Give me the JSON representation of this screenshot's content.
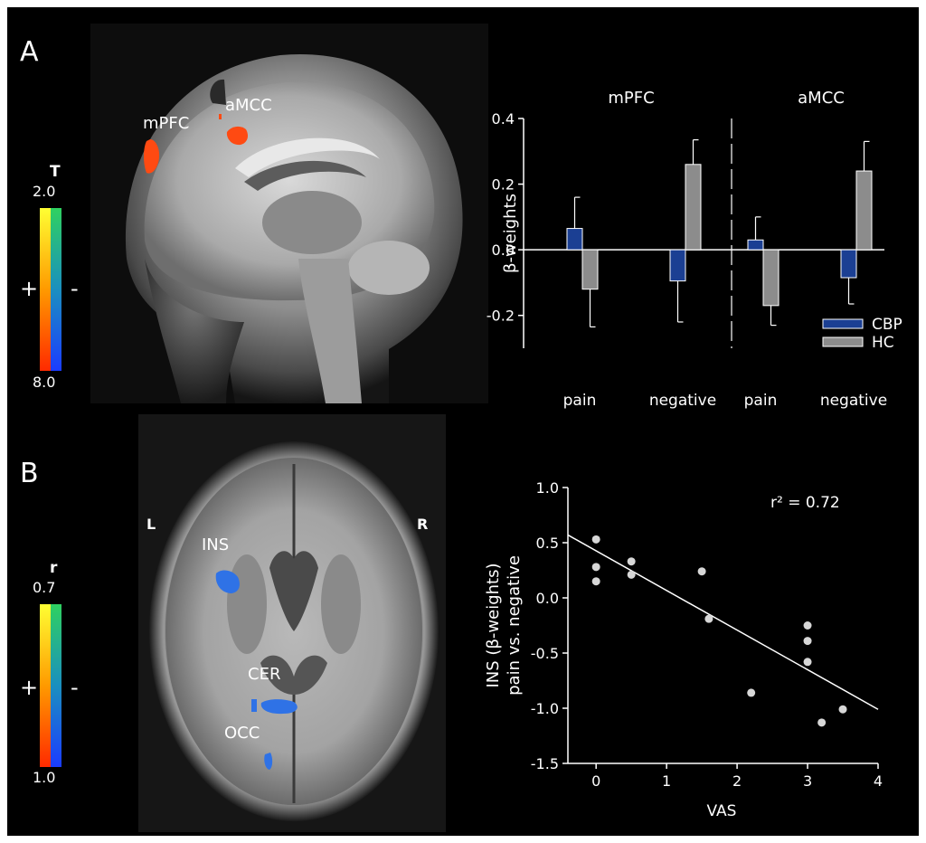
{
  "panels": {
    "A": {
      "letter": "A",
      "brain_view": "sagittal",
      "roi_labels": [
        "mPFC",
        "aMCC"
      ],
      "colorbar": {
        "title": "T",
        "top_label": "2.0",
        "bottom_label": "8.0",
        "plus": "+",
        "minus": "-"
      }
    },
    "B": {
      "letter": "B",
      "brain_view": "axial",
      "side_left": "L",
      "side_right": "R",
      "roi_labels": [
        "INS",
        "CER",
        "OCC"
      ],
      "colorbar": {
        "title": "r",
        "top_label": "0.7",
        "bottom_label": "1.0",
        "plus": "+",
        "minus": "-"
      }
    }
  },
  "colors": {
    "CBP": "#1b3f93",
    "HC": "#8c8c8c",
    "activation_positive": "#ff4a12",
    "activation_negative": "#2f72e6",
    "background": "#000000",
    "foreground": "#ffffff",
    "scatter_point": "#d7d7d7"
  },
  "chart_data": [
    {
      "type": "bar",
      "group_titles": [
        "mPFC",
        "aMCC"
      ],
      "categories": [
        "pain",
        "negative",
        "pain",
        "negative"
      ],
      "groups": [
        0,
        0,
        1,
        1
      ],
      "series": [
        {
          "name": "CBP",
          "values": [
            0.065,
            -0.095,
            0.03,
            -0.085
          ],
          "error": [
            0.095,
            0.125,
            0.07,
            0.08
          ]
        },
        {
          "name": "HC",
          "values": [
            -0.12,
            0.26,
            -0.17,
            0.24
          ],
          "error": [
            0.115,
            0.075,
            0.06,
            0.09
          ]
        }
      ],
      "ylabel": "β-weights",
      "xlabel": "",
      "ylim": [
        -0.3,
        0.4
      ],
      "yticks": [
        "0.4",
        "0.2",
        "0.0",
        "-0.2"
      ],
      "ytick_values": [
        0.4,
        0.2,
        0.0,
        -0.2
      ],
      "legend_position": "lower-right",
      "separator": "dashed vertical line between mPFC and aMCC groups"
    },
    {
      "type": "scatter",
      "points": [
        {
          "x": 0,
          "y": 0.53
        },
        {
          "x": 0,
          "y": 0.28
        },
        {
          "x": 0,
          "y": 0.15
        },
        {
          "x": 0.5,
          "y": 0.33
        },
        {
          "x": 0.5,
          "y": 0.21
        },
        {
          "x": 1.5,
          "y": 0.24
        },
        {
          "x": 1.6,
          "y": -0.19
        },
        {
          "x": 2.2,
          "y": -0.86
        },
        {
          "x": 3,
          "y": -0.25
        },
        {
          "x": 3,
          "y": -0.39
        },
        {
          "x": 3,
          "y": -0.58
        },
        {
          "x": 3.2,
          "y": -1.13
        },
        {
          "x": 3.5,
          "y": -1.01
        }
      ],
      "fit_line": {
        "x1": -0.4,
        "y1": 0.57,
        "x2": 4,
        "y2": -1.01
      },
      "annotation": "r² = 0.72",
      "xlabel": "VAS",
      "ylabel_line1": "INS (β-weights)",
      "ylabel_line2": "pain vs. negative",
      "xlim": [
        -0.4,
        4
      ],
      "ylim": [
        -1.5,
        1.0
      ],
      "xticks": [
        "0",
        "1",
        "2",
        "3",
        "4"
      ],
      "xtick_values": [
        0,
        1,
        2,
        3,
        4
      ],
      "yticks": [
        "1.0",
        "0.5",
        "0.0",
        "-0.5",
        "-1.0",
        "-1.5"
      ],
      "ytick_values": [
        1.0,
        0.5,
        0.0,
        -0.5,
        -1.0,
        -1.5
      ]
    }
  ]
}
